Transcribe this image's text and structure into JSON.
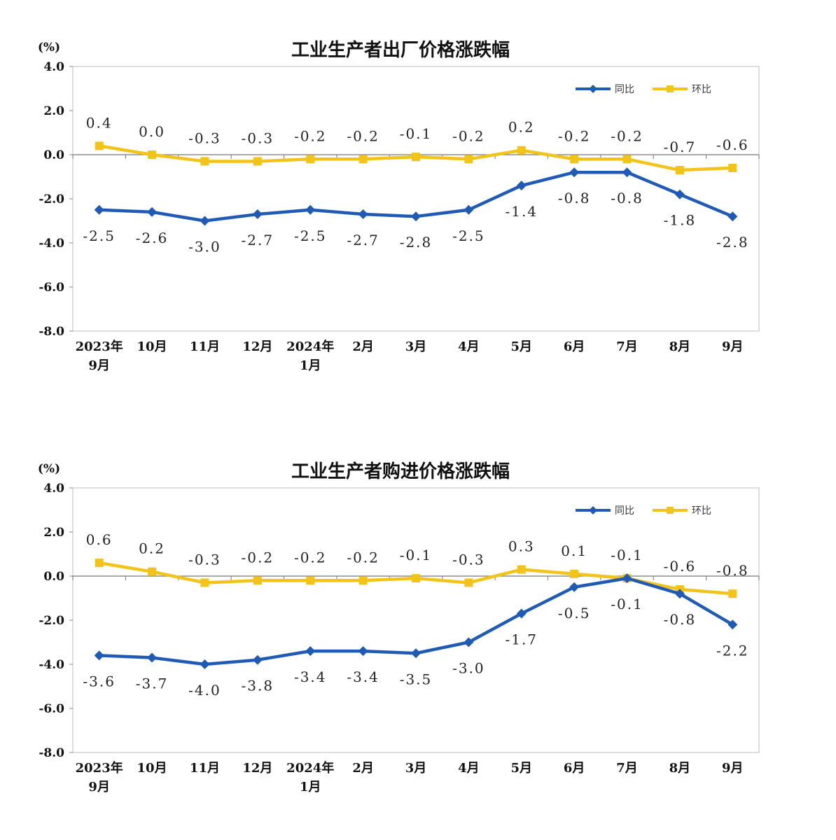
{
  "chart_data": [
    {
      "type": "line",
      "title": "工业生产者出厂价格涨跌幅",
      "ylabel": "(%)",
      "ylim": [
        -8.0,
        4.0
      ],
      "yticks": [
        "4.0",
        "2.0",
        "0.0",
        "-2.0",
        "-4.0",
        "-6.0",
        "-8.0"
      ],
      "categories": [
        [
          "2023年",
          "9月"
        ],
        [
          "10月"
        ],
        [
          "11月"
        ],
        [
          "12月"
        ],
        [
          "2024年",
          "1月"
        ],
        [
          "2月"
        ],
        [
          "3月"
        ],
        [
          "4月"
        ],
        [
          "5月"
        ],
        [
          "6月"
        ],
        [
          "7月"
        ],
        [
          "8月"
        ],
        [
          "9月"
        ]
      ],
      "series": [
        {
          "name": "同比",
          "color": "#1f5bb5",
          "marker": "diamond",
          "values": [
            -2.5,
            -2.6,
            -3.0,
            -2.7,
            -2.5,
            -2.7,
            -2.8,
            -2.5,
            -1.4,
            -0.8,
            -0.8,
            -1.8,
            -2.8
          ],
          "labels": [
            "-2.5",
            "-2.6",
            "-3.0",
            "-2.7",
            "-2.5",
            "-2.7",
            "-2.8",
            "-2.5",
            "-1.4",
            "-0.8",
            "-0.8",
            "-1.8",
            "-2.8"
          ]
        },
        {
          "name": "环比",
          "color": "#f2c318",
          "marker": "square",
          "values": [
            0.4,
            0.0,
            -0.3,
            -0.3,
            -0.2,
            -0.2,
            -0.1,
            -0.2,
            0.2,
            -0.2,
            -0.2,
            -0.7,
            -0.6
          ],
          "labels": [
            "0.4",
            "0.0",
            "-0.3",
            "-0.3",
            "-0.2",
            "-0.2",
            "-0.1",
            "-0.2",
            "0.2",
            "-0.2",
            "-0.2",
            "-0.7",
            "-0.6"
          ]
        }
      ],
      "legend": "top-right"
    },
    {
      "type": "line",
      "title": "工业生产者购进价格涨跌幅",
      "ylabel": "(%)",
      "ylim": [
        -8.0,
        4.0
      ],
      "yticks": [
        "4.0",
        "2.0",
        "0.0",
        "-2.0",
        "-4.0",
        "-6.0",
        "-8.0"
      ],
      "categories": [
        [
          "2023年",
          "9月"
        ],
        [
          "10月"
        ],
        [
          "11月"
        ],
        [
          "12月"
        ],
        [
          "2024年",
          "1月"
        ],
        [
          "2月"
        ],
        [
          "3月"
        ],
        [
          "4月"
        ],
        [
          "5月"
        ],
        [
          "6月"
        ],
        [
          "7月"
        ],
        [
          "8月"
        ],
        [
          "9月"
        ]
      ],
      "series": [
        {
          "name": "同比",
          "color": "#1f5bb5",
          "marker": "diamond",
          "values": [
            -3.6,
            -3.7,
            -4.0,
            -3.8,
            -3.4,
            -3.4,
            -3.5,
            -3.0,
            -1.7,
            -0.5,
            -0.1,
            -0.8,
            -2.2
          ],
          "labels": [
            "-3.6",
            "-3.7",
            "-4.0",
            "-3.8",
            "-3.4",
            "-3.4",
            "-3.5",
            "-3.0",
            "-1.7",
            "-0.5",
            "-0.1",
            "-0.8",
            "-2.2"
          ]
        },
        {
          "name": "环比",
          "color": "#f2c318",
          "marker": "square",
          "values": [
            0.6,
            0.2,
            -0.3,
            -0.2,
            -0.2,
            -0.2,
            -0.1,
            -0.3,
            0.3,
            0.1,
            -0.1,
            -0.6,
            -0.8
          ],
          "labels": [
            "0.6",
            "0.2",
            "-0.3",
            "-0.2",
            "-0.2",
            "-0.2",
            "-0.1",
            "-0.3",
            "0.3",
            "0.1",
            "-0.1",
            "-0.6",
            "-0.8"
          ]
        }
      ],
      "legend": "top-right"
    }
  ]
}
